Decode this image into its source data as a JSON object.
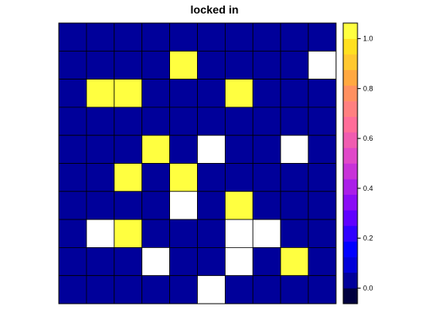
{
  "chart_data": {
    "type": "heatmap",
    "title": "locked in",
    "rows": 10,
    "cols": 10,
    "missing_color": "#ffffff",
    "values": [
      [
        0,
        0,
        0,
        0,
        0,
        0,
        0,
        0,
        0,
        0
      ],
      [
        0,
        0,
        0,
        0,
        1,
        0,
        0,
        0,
        0,
        null
      ],
      [
        0,
        1,
        1,
        0,
        0,
        0,
        1,
        0,
        0,
        0
      ],
      [
        0,
        0,
        0,
        0,
        0,
        0,
        0,
        0,
        0,
        0
      ],
      [
        0,
        0,
        0,
        1,
        0,
        null,
        0,
        0,
        null,
        0
      ],
      [
        0,
        0,
        1,
        0,
        1,
        0,
        0,
        0,
        0,
        0
      ],
      [
        0,
        0,
        0,
        0,
        null,
        0,
        1,
        0,
        0,
        0
      ],
      [
        0,
        null,
        1,
        0,
        0,
        0,
        null,
        null,
        0,
        0
      ],
      [
        0,
        0,
        0,
        null,
        0,
        0,
        null,
        0,
        1,
        0
      ],
      [
        0,
        0,
        0,
        0,
        0,
        null,
        0,
        0,
        0,
        0
      ]
    ],
    "colorbar": {
      "min": -0.0625,
      "max": 1.0625,
      "ticks": [
        0.0,
        0.2,
        0.4,
        0.6,
        0.8,
        1.0
      ],
      "tick_labels": [
        "0.0",
        "0.2",
        "0.4",
        "0.6",
        "0.8",
        "1.0"
      ],
      "colors": [
        "#00003f",
        "#00009a",
        "#0000d8",
        "#0000ff",
        "#3000ff",
        "#6000ff",
        "#8a0cf5",
        "#aa1ee8",
        "#c832d8",
        "#e048c8",
        "#f05cb0",
        "#ff6d99",
        "#ff8080",
        "#ff9060",
        "#ffa840",
        "#ffc830",
        "#ffe020",
        "#ffff40"
      ]
    }
  }
}
